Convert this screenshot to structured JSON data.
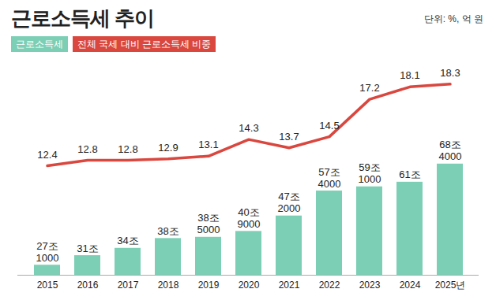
{
  "chart_data": {
    "type": "bar",
    "title": "근로소득세 추이",
    "subtitle": "단위: %, 억 원",
    "categories": [
      "2015",
      "2016",
      "2017",
      "2018",
      "2019",
      "2020",
      "2021",
      "2022",
      "2023",
      "2024",
      "2025년"
    ],
    "series": [
      {
        "name": "근로소득세",
        "type": "bar",
        "color": "#7ccfb5",
        "values": [
          271000,
          310000,
          340000,
          380000,
          385000,
          409000,
          472000,
          574000,
          591000,
          610000,
          684000
        ],
        "value_labels": [
          "27조\n1000",
          "31조",
          "34조",
          "38조",
          "38조\n5000",
          "40조\n9000",
          "47조\n2000",
          "57조\n4000",
          "59조\n1000",
          "61조",
          "68조\n4000"
        ]
      },
      {
        "name": "전체 국세 대비 근로소득세 비중",
        "type": "line",
        "color": "#d9473f",
        "axis": "y2",
        "values": [
          12.4,
          12.8,
          12.8,
          12.9,
          13.1,
          14.3,
          13.7,
          14.5,
          17.2,
          18.1,
          18.3
        ]
      }
    ],
    "ylim": [
      230000,
      1050000
    ],
    "y2lim": [
      4.5,
      19
    ],
    "data_labels": true,
    "tick_labels": "x",
    "legend": "top-left"
  }
}
